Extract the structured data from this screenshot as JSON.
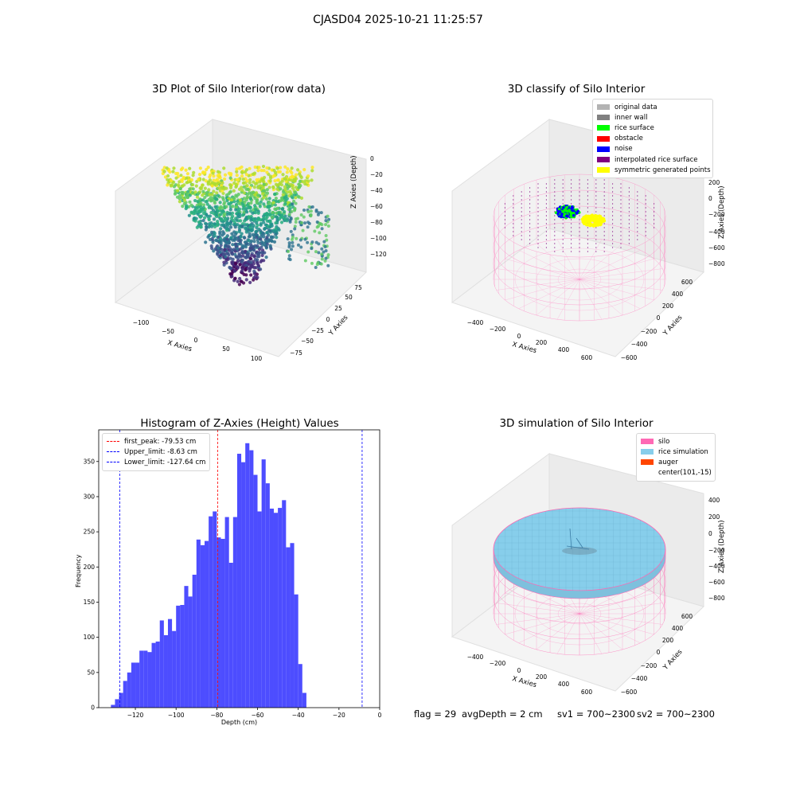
{
  "figure": {
    "title": "CJASD04 2025-10-21 11:25:57",
    "status": {
      "flag": "flag = 29",
      "avg_depth": "avgDepth = 2 cm",
      "sv1": "sv1 = 700~2300",
      "sv2": "sv2 = 700~2300"
    }
  },
  "plot_raw": {
    "title": "3D Plot of Silo Interior(row data)",
    "xlabel": "X Axies",
    "ylabel": "Y Axies",
    "zlabel": "Z Axies (Depth)",
    "xticks": [
      "−100",
      "−50",
      "0",
      "50",
      "100"
    ],
    "yticks": [
      "−75",
      "−50",
      "−25",
      "0",
      "25",
      "50",
      "75"
    ],
    "zticks": [
      "0",
      "−20",
      "−40",
      "−60",
      "−80",
      "−100",
      "−120"
    ]
  },
  "plot_classify": {
    "title": "3D classify of Silo Interior",
    "xlabel": "X Axies",
    "ylabel": "Y Axies",
    "zlabel": "Z Axies (Depth)",
    "xticks": [
      "−400",
      "−200",
      "0",
      "200",
      "400",
      "600"
    ],
    "yticks": [
      "−600",
      "−400",
      "−200",
      "0",
      "200",
      "400",
      "600"
    ],
    "zticks": [
      "200",
      "0",
      "−200",
      "−400",
      "−600",
      "−800"
    ],
    "legend": [
      {
        "label": "original data",
        "color": "#b3b3b3"
      },
      {
        "label": "inner wall",
        "color": "#808080"
      },
      {
        "label": "rice surface",
        "color": "#00ff00"
      },
      {
        "label": "obstacle",
        "color": "#ff0000"
      },
      {
        "label": "noise",
        "color": "#0000ff"
      },
      {
        "label": "interpolated rice surface",
        "color": "#800080"
      },
      {
        "label": "symmetric generated points",
        "color": "#ffff00"
      }
    ]
  },
  "plot_sim": {
    "title": "3D simulation of Silo Interior",
    "xlabel": "X Axies",
    "ylabel": "Y Axies",
    "zlabel": "Z Axies (Depth)",
    "xticks": [
      "−400",
      "−200",
      "0",
      "200",
      "400",
      "600"
    ],
    "yticks": [
      "−600",
      "−400",
      "−200",
      "0",
      "200",
      "400",
      "600"
    ],
    "zticks": [
      "400",
      "200",
      "0",
      "−200",
      "−400",
      "−600",
      "−800"
    ],
    "legend": [
      {
        "label": "silo",
        "color": "#ff69b4"
      },
      {
        "label": "rice simulation",
        "color": "#87ceeb"
      },
      {
        "label": "auger",
        "color": "#ff4500"
      },
      {
        "label": "center(101,-15)",
        "color": ""
      }
    ]
  },
  "chart_data": {
    "type": "bar",
    "title": "Histogram of Z-Axies (Height) Values",
    "xlabel": "Depth (cm)",
    "ylabel": "Frequency",
    "xlim": [
      -138,
      0
    ],
    "ylim": [
      0,
      395
    ],
    "bin_start": -136,
    "bin_width": 2,
    "bar_color": "#4d4dff",
    "xticks": [
      -120,
      -100,
      -80,
      -60,
      -40,
      -20,
      0
    ],
    "xtick_labels": [
      "−120",
      "−100",
      "−80",
      "−60",
      "−40",
      "−20",
      "0"
    ],
    "yticks": [
      0,
      50,
      100,
      150,
      200,
      250,
      300,
      350
    ],
    "ytick_labels": [
      "0",
      "50",
      "100",
      "150",
      "200",
      "250",
      "300",
      "350"
    ],
    "values": [
      0,
      0,
      4,
      12,
      21,
      38,
      50,
      64,
      64,
      81,
      81,
      79,
      92,
      94,
      124,
      103,
      126,
      109,
      145,
      146,
      173,
      158,
      189,
      239,
      231,
      237,
      272,
      279,
      242,
      240,
      271,
      206,
      271,
      361,
      349,
      376,
      366,
      331,
      279,
      353,
      319,
      283,
      277,
      284,
      295,
      228,
      234,
      161,
      62,
      21
    ],
    "lines": [
      {
        "label": "first_peak: -79.53 cm",
        "x": -79.53,
        "color": "#ff0000"
      },
      {
        "label": "Upper_limit: -8.63 cm",
        "x": -8.63,
        "color": "#0000ff"
      },
      {
        "label": "Lower_limit: -127.64 cm",
        "x": -127.64,
        "color": "#0000ff"
      }
    ]
  }
}
